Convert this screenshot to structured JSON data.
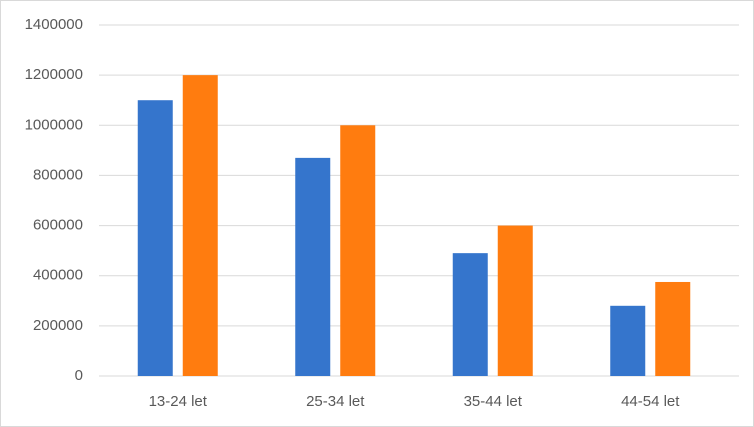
{
  "chart_data": {
    "type": "bar",
    "categories": [
      "13-24 let",
      "25-34 let",
      "35-44 let",
      "44-54 let"
    ],
    "series": [
      {
        "color": "#3575cc",
        "values": [
          1100000,
          870000,
          490000,
          280000
        ]
      },
      {
        "color": "#ff7c0f",
        "values": [
          1200000,
          1000000,
          600000,
          375000
        ]
      }
    ],
    "ylim": [
      0,
      1400000
    ],
    "yticks": [
      0,
      200000,
      400000,
      600000,
      800000,
      1000000,
      1200000,
      1400000
    ],
    "grid": true
  }
}
